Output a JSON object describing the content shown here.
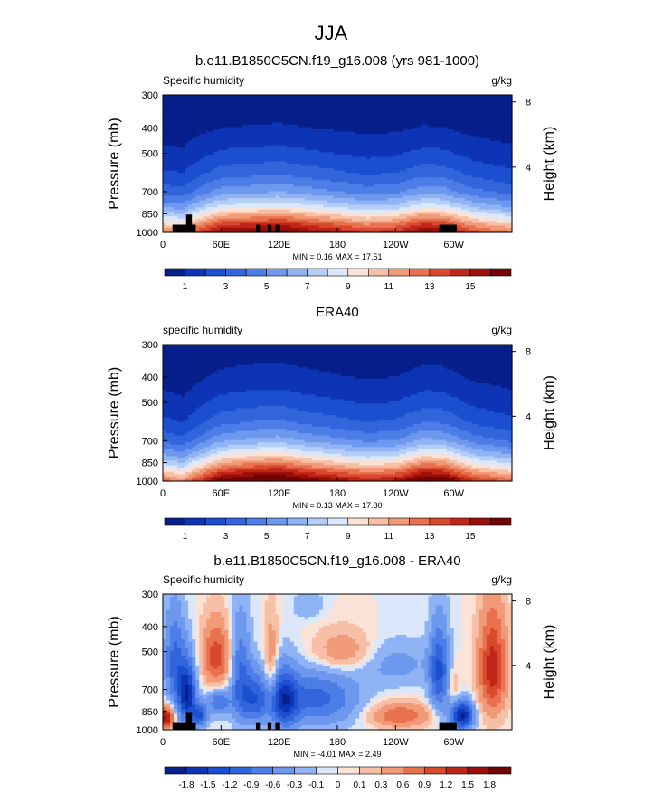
{
  "page_title": "JJA",
  "chart_data": [
    {
      "type": "heatmap",
      "title": "b.e11.B1850C5CN.f19_g16.008 (yrs 981-1000)",
      "variable_label": "Specific humidity",
      "units": "g/kg",
      "ylabel": "Pressure (mb)",
      "ylabel_right": "Height (km)",
      "x_ticks": [
        "0",
        "60E",
        "120E",
        "180",
        "120W",
        "60W"
      ],
      "x_tick_values": [
        0,
        60,
        120,
        180,
        240,
        300
      ],
      "xlim": [
        0,
        360
      ],
      "y_ticks": [
        "300",
        "400",
        "500",
        "700",
        "850",
        "1000"
      ],
      "y_tick_values": [
        300,
        400,
        500,
        700,
        850,
        1000
      ],
      "ylim": [
        1000,
        300
      ],
      "right_ticks": [
        "8",
        "4"
      ],
      "right_tick_values": [
        8,
        4
      ],
      "stats": "MIN =   0.16  MAX =  17.51",
      "min": 0.16,
      "max": 17.51,
      "colorbar_labels": [
        "1",
        "3",
        "5",
        "7",
        "9",
        "11",
        "13",
        "15"
      ],
      "colorbar_levels": [
        1,
        2,
        3,
        4,
        5,
        6,
        7,
        8,
        9,
        10,
        11,
        12,
        13,
        14,
        15,
        16
      ],
      "colors": [
        "#071f8a",
        "#0c34b4",
        "#1c4ed0",
        "#3265dc",
        "#4d7de6",
        "#6d98ee",
        "#8fb3f4",
        "#b4cef8",
        "#dbe7fb",
        "#fbe2d6",
        "#f7c0a6",
        "#f19a78",
        "#e8714f",
        "#d9492e",
        "#c02617",
        "#9c0f0a",
        "#720404"
      ],
      "vertical_profile": [
        {
          "p": 300,
          "v": 0.4
        },
        {
          "p": 400,
          "v": 1.0
        },
        {
          "p": 500,
          "v": 2.2
        },
        {
          "p": 600,
          "v": 3.6
        },
        {
          "p": 700,
          "v": 5.5
        },
        {
          "p": 800,
          "v": 8.5
        },
        {
          "p": 850,
          "v": 10.5
        },
        {
          "p": 925,
          "v": 13.5
        },
        {
          "p": 1000,
          "v": 16.0
        }
      ],
      "moisture_by_longitude": [
        {
          "lon": 0,
          "f": 0.6
        },
        {
          "lon": 20,
          "f": 0.55
        },
        {
          "lon": 35,
          "f": 0.75
        },
        {
          "lon": 60,
          "f": 1.0
        },
        {
          "lon": 90,
          "f": 1.05
        },
        {
          "lon": 120,
          "f": 1.1
        },
        {
          "lon": 150,
          "f": 1.0
        },
        {
          "lon": 180,
          "f": 0.9
        },
        {
          "lon": 210,
          "f": 0.8
        },
        {
          "lon": 240,
          "f": 0.85
        },
        {
          "lon": 270,
          "f": 1.05
        },
        {
          "lon": 290,
          "f": 1.0
        },
        {
          "lon": 320,
          "f": 0.75
        },
        {
          "lon": 360,
          "f": 0.6
        }
      ],
      "topography": [
        {
          "lon0": 10,
          "lon1": 32,
          "p": 935
        },
        {
          "lon0": 24,
          "lon1": 30,
          "p": 855
        },
        {
          "lon0": 32,
          "lon1": 34,
          "p": 935
        },
        {
          "lon0": 96,
          "lon1": 101,
          "p": 935
        },
        {
          "lon0": 108,
          "lon1": 112,
          "p": 935
        },
        {
          "lon0": 116,
          "lon1": 121,
          "p": 935
        },
        {
          "lon0": 285,
          "lon1": 303,
          "p": 935
        }
      ]
    },
    {
      "type": "heatmap",
      "title": "ERA40",
      "variable_label": "specific humidity",
      "units": "g/kg",
      "ylabel": "Pressure (mb)",
      "ylabel_right": "Height (km)",
      "x_ticks": [
        "0",
        "60E",
        "120E",
        "180",
        "120W",
        "60W"
      ],
      "x_tick_values": [
        0,
        60,
        120,
        180,
        240,
        300
      ],
      "xlim": [
        0,
        360
      ],
      "y_ticks": [
        "300",
        "400",
        "500",
        "700",
        "850",
        "1000"
      ],
      "y_tick_values": [
        300,
        400,
        500,
        700,
        850,
        1000
      ],
      "ylim": [
        1000,
        300
      ],
      "right_ticks": [
        "8",
        "4"
      ],
      "right_tick_values": [
        8,
        4
      ],
      "stats": "MIN =   0.13  MAX =  17.80",
      "min": 0.13,
      "max": 17.8,
      "colorbar_labels": [
        "1",
        "3",
        "5",
        "7",
        "9",
        "11",
        "13",
        "15"
      ],
      "colorbar_levels": [
        1,
        2,
        3,
        4,
        5,
        6,
        7,
        8,
        9,
        10,
        11,
        12,
        13,
        14,
        15,
        16
      ],
      "colors": [
        "#071f8a",
        "#0c34b4",
        "#1c4ed0",
        "#3265dc",
        "#4d7de6",
        "#6d98ee",
        "#8fb3f4",
        "#b4cef8",
        "#dbe7fb",
        "#fbe2d6",
        "#f7c0a6",
        "#f19a78",
        "#e8714f",
        "#d9492e",
        "#c02617",
        "#9c0f0a",
        "#720404"
      ],
      "vertical_profile": [
        {
          "p": 300,
          "v": 0.5
        },
        {
          "p": 400,
          "v": 1.2
        },
        {
          "p": 500,
          "v": 2.4
        },
        {
          "p": 600,
          "v": 3.8
        },
        {
          "p": 700,
          "v": 5.8
        },
        {
          "p": 800,
          "v": 9.0
        },
        {
          "p": 850,
          "v": 11.0
        },
        {
          "p": 925,
          "v": 14.0
        },
        {
          "p": 1000,
          "v": 16.8
        }
      ],
      "moisture_by_longitude": [
        {
          "lon": 0,
          "f": 0.6
        },
        {
          "lon": 20,
          "f": 0.5
        },
        {
          "lon": 35,
          "f": 0.7
        },
        {
          "lon": 60,
          "f": 1.0
        },
        {
          "lon": 90,
          "f": 1.1
        },
        {
          "lon": 120,
          "f": 1.15
        },
        {
          "lon": 150,
          "f": 1.0
        },
        {
          "lon": 180,
          "f": 0.9
        },
        {
          "lon": 210,
          "f": 0.8
        },
        {
          "lon": 240,
          "f": 0.85
        },
        {
          "lon": 270,
          "f": 1.1
        },
        {
          "lon": 290,
          "f": 1.05
        },
        {
          "lon": 320,
          "f": 0.75
        },
        {
          "lon": 360,
          "f": 0.6
        }
      ],
      "topography": []
    },
    {
      "type": "heatmap",
      "title": "b.e11.B1850C5CN.f19_g16.008 - ERA40",
      "variable_label": "Specific humidity",
      "units": "g/kg",
      "ylabel": "Pressure (mb)",
      "ylabel_right": "Height (km)",
      "x_ticks": [
        "0",
        "60E",
        "120E",
        "180",
        "120W",
        "60W"
      ],
      "x_tick_values": [
        0,
        60,
        120,
        180,
        240,
        300
      ],
      "xlim": [
        0,
        360
      ],
      "y_ticks": [
        "300",
        "400",
        "500",
        "700",
        "850",
        "1000"
      ],
      "y_tick_values": [
        300,
        400,
        500,
        700,
        850,
        1000
      ],
      "ylim": [
        1000,
        300
      ],
      "right_ticks": [
        "8",
        "4"
      ],
      "right_tick_values": [
        8,
        4
      ],
      "stats": "MIN =  -4.01  MAX =   2.49",
      "min": -4.01,
      "max": 2.49,
      "colorbar_labels": [
        "-1.8",
        "-1.5",
        "-1.2",
        "-0.9",
        "-0.6",
        "-0.3",
        "-0.1",
        "0",
        "0.1",
        "0.3",
        "0.6",
        "0.9",
        "1.2",
        "1.5",
        "1.8"
      ],
      "colorbar_levels": [
        -1.8,
        -1.5,
        -1.2,
        -0.9,
        -0.6,
        -0.3,
        -0.1,
        0,
        0.1,
        0.3,
        0.6,
        0.9,
        1.2,
        1.5,
        1.8
      ],
      "colors": [
        "#071f8a",
        "#0c34b4",
        "#1c4ed0",
        "#3265dc",
        "#4d7de6",
        "#6d98ee",
        "#8fb3f4",
        "#dbe7fb",
        "#fbe2d6",
        "#f7c0a6",
        "#f19a78",
        "#e8714f",
        "#d9492e",
        "#c02617",
        "#9c0f0a",
        "#720404"
      ],
      "anomaly_blobs": [
        {
          "lon": 3,
          "p": 900,
          "dlon": 8,
          "dp": 90,
          "v": 1.6
        },
        {
          "lon": 12,
          "p": 550,
          "dlon": 10,
          "dp": 230,
          "v": -1.0
        },
        {
          "lon": 25,
          "p": 730,
          "dlon": 9,
          "dp": 200,
          "v": -1.8
        },
        {
          "lon": 38,
          "p": 880,
          "dlon": 8,
          "dp": 90,
          "v": -1.2
        },
        {
          "lon": 55,
          "p": 520,
          "dlon": 14,
          "dp": 150,
          "v": 1.1
        },
        {
          "lon": 58,
          "p": 780,
          "dlon": 12,
          "dp": 90,
          "v": -0.9
        },
        {
          "lon": 80,
          "p": 620,
          "dlon": 10,
          "dp": 280,
          "v": -0.9
        },
        {
          "lon": 95,
          "p": 760,
          "dlon": 14,
          "dp": 170,
          "v": -1.1
        },
        {
          "lon": 112,
          "p": 560,
          "dlon": 7,
          "dp": 220,
          "v": 0.6
        },
        {
          "lon": 125,
          "p": 770,
          "dlon": 14,
          "dp": 200,
          "v": -1.4
        },
        {
          "lon": 150,
          "p": 330,
          "dlon": 15,
          "dp": 40,
          "v": -0.3
        },
        {
          "lon": 160,
          "p": 760,
          "dlon": 40,
          "dp": 180,
          "v": -1.0
        },
        {
          "lon": 185,
          "p": 500,
          "dlon": 30,
          "dp": 90,
          "v": 0.6
        },
        {
          "lon": 240,
          "p": 560,
          "dlon": 40,
          "dp": 110,
          "v": -0.4
        },
        {
          "lon": 245,
          "p": 880,
          "dlon": 30,
          "dp": 90,
          "v": 0.9
        },
        {
          "lon": 285,
          "p": 600,
          "dlon": 10,
          "dp": 230,
          "v": -1.2
        },
        {
          "lon": 300,
          "p": 700,
          "dlon": 7,
          "dp": 160,
          "v": 0.3
        },
        {
          "lon": 308,
          "p": 880,
          "dlon": 12,
          "dp": 110,
          "v": -1.9
        },
        {
          "lon": 340,
          "p": 580,
          "dlon": 14,
          "dp": 260,
          "v": 1.4
        }
      ],
      "topography": [
        {
          "lon0": 10,
          "lon1": 32,
          "p": 935
        },
        {
          "lon0": 24,
          "lon1": 30,
          "p": 855
        },
        {
          "lon0": 32,
          "lon1": 34,
          "p": 935
        },
        {
          "lon0": 96,
          "lon1": 101,
          "p": 935
        },
        {
          "lon0": 108,
          "lon1": 112,
          "p": 935
        },
        {
          "lon0": 116,
          "lon1": 121,
          "p": 935
        },
        {
          "lon0": 285,
          "lon1": 303,
          "p": 935
        }
      ]
    }
  ]
}
